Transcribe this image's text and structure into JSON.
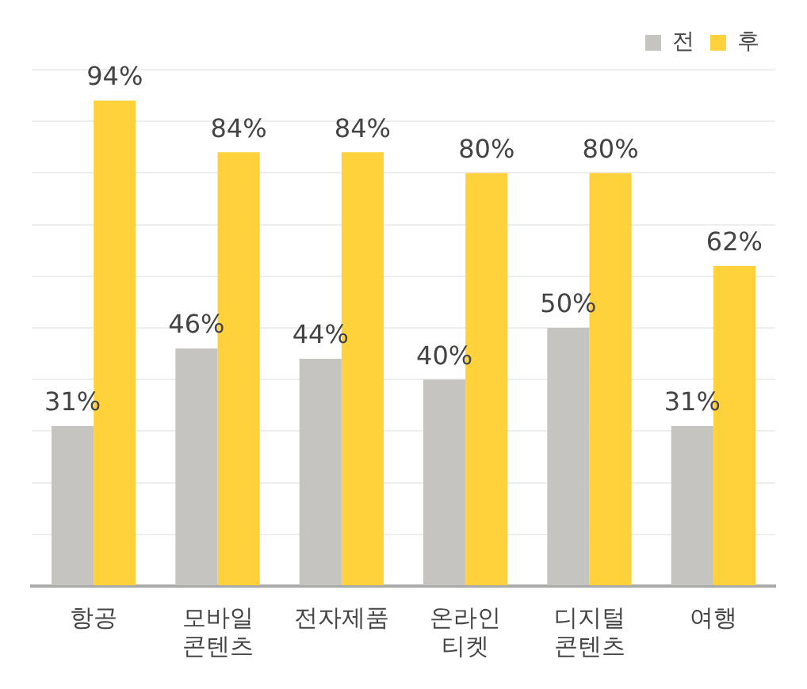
{
  "chart_data": {
    "type": "bar",
    "categories": [
      "항공",
      "모바일 콘텐츠",
      "전자제품",
      "온라인 티켓",
      "디지털 콘텐츠",
      "여행"
    ],
    "series": [
      {
        "name": "전",
        "color": "#c6c4c1",
        "values": [
          31,
          46,
          44,
          40,
          50,
          31
        ],
        "value_labels": [
          "31%",
          "46%",
          "44%",
          "40%",
          "50%",
          "31%"
        ]
      },
      {
        "name": "후",
        "color": "#ffd23c",
        "values": [
          94,
          84,
          84,
          80,
          80,
          62
        ],
        "value_labels": [
          "94%",
          "84%",
          "84%",
          "80%",
          "80%",
          "62%"
        ]
      }
    ],
    "grid": "y",
    "legend": "top right",
    "tick_labels": "x"
  }
}
